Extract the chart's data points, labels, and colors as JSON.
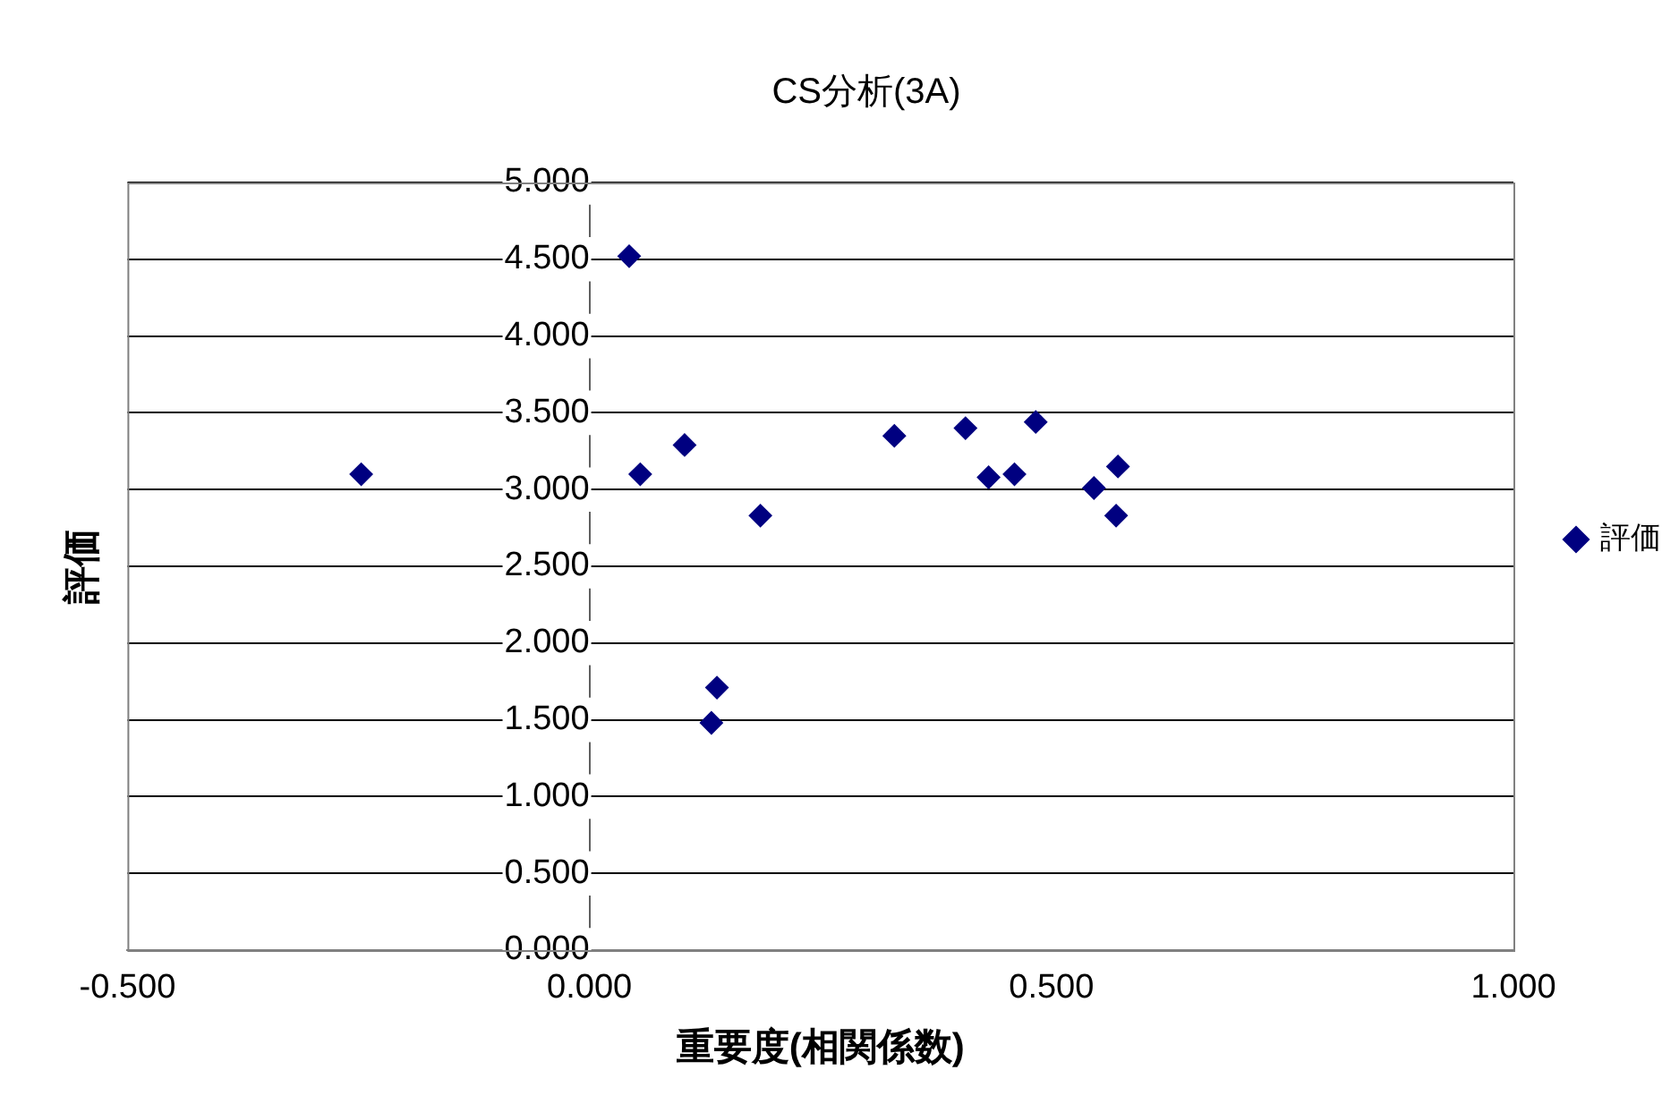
{
  "chart_data": {
    "type": "scatter",
    "title": "CS分析(3A)",
    "xlabel": "重要度(相関係数)",
    "ylabel": "評価",
    "series": [
      {
        "name": "評価",
        "color": "#000080",
        "x": [
          -0.247,
          0.043,
          0.055,
          0.103,
          0.185,
          0.138,
          0.132,
          0.33,
          0.407,
          0.432,
          0.46,
          0.483,
          0.546,
          0.572,
          0.57
        ],
        "values": [
          3.1,
          4.52,
          3.1,
          3.29,
          2.83,
          1.71,
          1.48,
          3.35,
          3.4,
          3.08,
          3.1,
          3.44,
          3.01,
          3.15,
          2.83
        ]
      }
    ],
    "xlim": [
      -0.5,
      1.0
    ],
    "xticks": [
      {
        "value": -0.5,
        "label": "-0.500"
      },
      {
        "value": 0,
        "label": "0.000"
      },
      {
        "value": 0.5,
        "label": "0.500"
      },
      {
        "value": 1,
        "label": "1.000"
      }
    ],
    "ylim": [
      0,
      5
    ],
    "yticks": [
      {
        "value": 0,
        "label": "0.000"
      },
      {
        "value": 0.5,
        "label": "0.500"
      },
      {
        "value": 1,
        "label": "1.000"
      },
      {
        "value": 1.5,
        "label": "1.500"
      },
      {
        "value": 2,
        "label": "2.000"
      },
      {
        "value": 2.5,
        "label": "2.500"
      },
      {
        "value": 3,
        "label": "3.000"
      },
      {
        "value": 3.5,
        "label": "3.500"
      },
      {
        "value": 4,
        "label": "4.000"
      },
      {
        "value": 4.5,
        "label": "4.500"
      },
      {
        "value": 5,
        "label": "5.000"
      }
    ],
    "grid": "y",
    "legend": "right",
    "marker": "diamond"
  }
}
